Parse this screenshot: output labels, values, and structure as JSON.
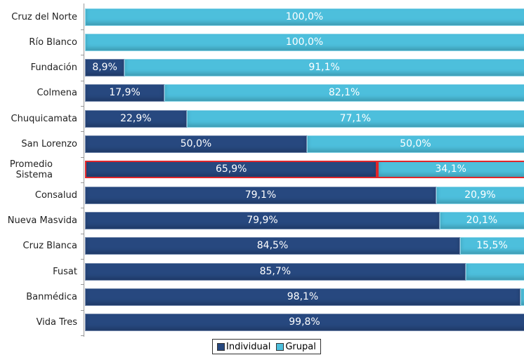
{
  "chart_data": {
    "type": "stacked_bar_horizontal",
    "categories": [
      "Cruz del Norte",
      "Río Blanco",
      "Fundación",
      "Colmena",
      "Chuquicamata",
      "San Lorenzo",
      "Promedio Sistema",
      "Consalud",
      "Nueva Masvida",
      "Cruz Blanca",
      "Fusat",
      "Banmédica",
      "Vida Tres"
    ],
    "series": [
      {
        "name": "Individual",
        "color": "#27487f",
        "values": [
          0,
          0,
          8.9,
          17.9,
          22.9,
          50,
          65.9,
          79.1,
          79.9,
          84.5,
          85.7,
          98.1,
          99.8
        ],
        "value_labels": [
          null,
          null,
          "8,9%",
          "17,9%",
          "22,9%",
          "50,0%",
          "65,9%",
          "79,1%",
          "79,9%",
          "84,5%",
          "85,7%",
          "98,1%",
          "99,8%"
        ]
      },
      {
        "name": "Grupal",
        "color": "#4dbfdc",
        "values": [
          100,
          100,
          91.1,
          82.1,
          77.1,
          50,
          34.1,
          20.9,
          20.1,
          15.5,
          14.3,
          1.9,
          0.2
        ],
        "value_labels": [
          "100,0%",
          "100,0%",
          "91,1%",
          "82,1%",
          "77,1%",
          "50,0%",
          "34,1%",
          "20,9%",
          "20,1%",
          "15,5%",
          null,
          null,
          null
        ]
      }
    ],
    "xlim": [
      0,
      100
    ],
    "highlight_index": 6,
    "highlight_color": "#e0262b",
    "legend": "bottom"
  }
}
